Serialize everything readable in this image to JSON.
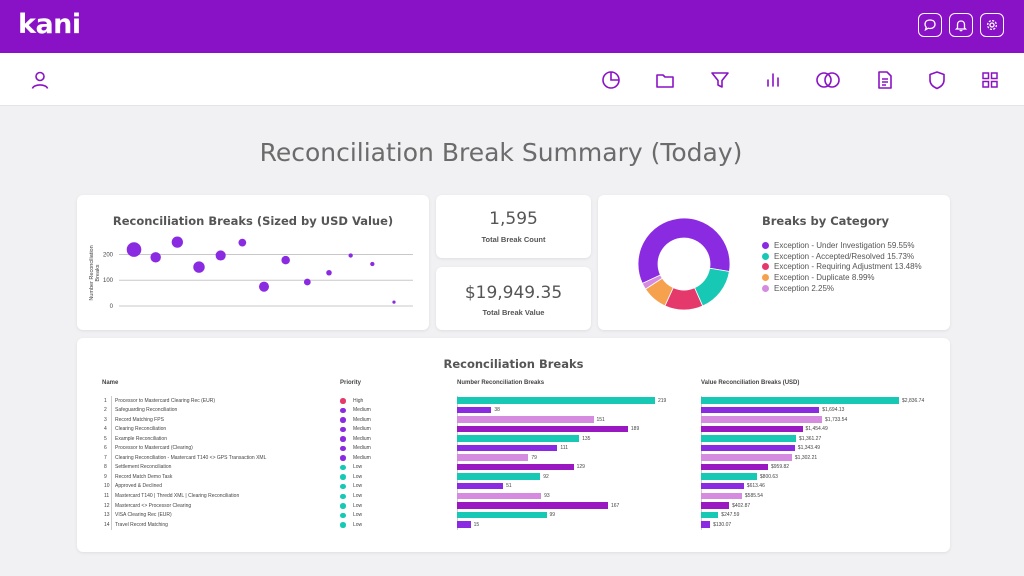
{
  "header": {
    "logo": "kani",
    "icons": [
      "chat-icon",
      "bell-icon",
      "gear-icon"
    ]
  },
  "nav": {
    "icons": [
      "user-icon",
      "pie-chart-icon",
      "folder-icon",
      "filter-icon",
      "bar-chart-icon",
      "rings-icon",
      "document-icon",
      "shield-icon",
      "grid-icon"
    ]
  },
  "page_title": "Reconciliation Break Summary (Today)",
  "colors": {
    "brand": "#8a12c6",
    "purple": "#8a2be2",
    "teal": "#17c8b5",
    "pink": "#e6396b",
    "orange": "#f6a14e",
    "lilac": "#d58be0"
  },
  "bubble_chart": {
    "title": "Reconciliation Breaks (Sized by USD Value)",
    "ylabel": "Number Reconciliation Breaks",
    "chart_data": {
      "type": "scatter",
      "title": "Reconciliation Breaks (Sized by USD Value)",
      "ylabel": "Number Reconciliation Breaks",
      "yticks": [
        0,
        100,
        200
      ],
      "ylim": [
        0,
        260
      ],
      "points": [
        {
          "x": 1,
          "y": 219,
          "size": 2836.74
        },
        {
          "x": 2,
          "y": 189,
          "size": 1454.49
        },
        {
          "x": 3,
          "y": 248,
          "size": 1694.13
        },
        {
          "x": 4,
          "y": 151,
          "size": 1733.54
        },
        {
          "x": 5,
          "y": 196,
          "size": 1361.27
        },
        {
          "x": 6,
          "y": 246,
          "size": 800.63
        },
        {
          "x": 7,
          "y": 75,
          "size": 1343.49
        },
        {
          "x": 8,
          "y": 178,
          "size": 959.82
        },
        {
          "x": 9,
          "y": 93,
          "size": 613.46
        },
        {
          "x": 10,
          "y": 129,
          "size": 402.87
        },
        {
          "x": 11,
          "y": 196,
          "size": 247.59
        },
        {
          "x": 12,
          "y": 163,
          "size": 247.59
        },
        {
          "x": 13,
          "y": 15,
          "size": 130.07
        }
      ]
    }
  },
  "kpis": [
    {
      "value": "1,595",
      "label": "Total Break Count"
    },
    {
      "value": "$19,949.35",
      "label": "Total Break Value"
    }
  ],
  "donut": {
    "title": "Breaks by Category",
    "chart_data": {
      "type": "pie",
      "title": "Breaks by Category",
      "labels": [
        "Exception - Under Investigation",
        "Exception - Accepted/Resolved",
        "Exception - Requiring Adjustment",
        "Exception - Duplicate",
        "Exception"
      ],
      "values": [
        59.55,
        15.73,
        13.48,
        8.99,
        2.25
      ],
      "colors": [
        "#8a2be2",
        "#17c8b5",
        "#e6396b",
        "#f6a14e",
        "#d58be0"
      ]
    },
    "legend": [
      "Exception - Under Investigation 59.55%",
      "Exception - Accepted/Resolved 15.73%",
      "Exception - Requiring Adjustment 13.48%",
      "Exception - Duplicate 8.99%",
      "Exception 2.25%"
    ]
  },
  "table": {
    "title": "Reconciliation Breaks",
    "headers": {
      "name": "Name",
      "priority": "Priority",
      "count": "Number Reconciliation Breaks",
      "value": "Value Reconciliation Breaks (USD)"
    },
    "rows": [
      {
        "num": "1",
        "name": "Processor to Mastercard Clearing Rec (EUR)",
        "priority": "High",
        "pcolor": "#e6396b",
        "count": 219,
        "count_label": "219",
        "value": 2836.74,
        "value_label": "$2,836.74",
        "color": "#17c8b5"
      },
      {
        "num": "2",
        "name": "Safeguarding Reconciliation",
        "priority": "Medium",
        "pcolor": "#8a2be2",
        "count": 38,
        "count_label": "38",
        "value": 1694.13,
        "value_label": "$1,694.13",
        "color": "#8a2be2"
      },
      {
        "num": "3",
        "name": "Record Matching FPS",
        "priority": "Medium",
        "pcolor": "#8a2be2",
        "count": 151,
        "count_label": "151",
        "value": 1733.54,
        "value_label": "$1,733.54",
        "color": "#d58be0"
      },
      {
        "num": "4",
        "name": "Clearing Reconciliation",
        "priority": "Medium",
        "pcolor": "#8a2be2",
        "count": 189,
        "count_label": "189",
        "value": 1454.49,
        "value_label": "$1,454.49",
        "color": "#9a18c2"
      },
      {
        "num": "5",
        "name": "Example Reconciliation",
        "priority": "Medium",
        "pcolor": "#8a2be2",
        "count": 135,
        "count_label": "135",
        "value": 1361.27,
        "value_label": "$1,361.27",
        "color": "#17c8b5"
      },
      {
        "num": "6",
        "name": "Processor to Mastercard (Clearing)",
        "priority": "Medium",
        "pcolor": "#8a2be2",
        "count": 111,
        "count_label": "111",
        "value": 1343.49,
        "value_label": "$1,343.49",
        "color": "#8a2be2"
      },
      {
        "num": "7",
        "name": "Clearing Reconciliation - Mastercard T140 <> GPS Transaction XML",
        "priority": "Medium",
        "pcolor": "#8a2be2",
        "count": 79,
        "count_label": "79",
        "value": 1302.21,
        "value_label": "$1,302.21",
        "color": "#d58be0"
      },
      {
        "num": "8",
        "name": "Settlement Reconciliation",
        "priority": "Low",
        "pcolor": "#17c8b5",
        "count": 129,
        "count_label": "129",
        "value": 959.82,
        "value_label": "$959.82",
        "color": "#9a18c2"
      },
      {
        "num": "9",
        "name": "Record Match Demo Task",
        "priority": "Low",
        "pcolor": "#17c8b5",
        "count": 92,
        "count_label": "92",
        "value": 800.63,
        "value_label": "$800.63",
        "color": "#17c8b5"
      },
      {
        "num": "10",
        "name": "Approved & Declined",
        "priority": "Low",
        "pcolor": "#17c8b5",
        "count": 51,
        "count_label": "51",
        "value": 613.46,
        "value_label": "$613.46",
        "color": "#8a2be2"
      },
      {
        "num": "11",
        "name": "Mastercard T140 | Thredd XML | Clearing Reconciliation",
        "priority": "Low",
        "pcolor": "#17c8b5",
        "count": 93,
        "count_label": "93",
        "value": 585.54,
        "value_label": "$585.54",
        "color": "#d58be0"
      },
      {
        "num": "12",
        "name": "Mastercard <> Processor Clearing",
        "priority": "Low",
        "pcolor": "#17c8b5",
        "count": 167,
        "count_label": "167",
        "value": 402.87,
        "value_label": "$402.87",
        "color": "#9a18c2"
      },
      {
        "num": "13",
        "name": "VISA Clearing Rec (EUR)",
        "priority": "Low",
        "pcolor": "#17c8b5",
        "count": 99,
        "count_label": "99",
        "value": 247.59,
        "value_label": "$247.59",
        "color": "#17c8b5"
      },
      {
        "num": "14",
        "name": "Travel Record Matching",
        "priority": "Low",
        "pcolor": "#17c8b5",
        "count": 15,
        "count_label": "15",
        "value": 130.07,
        "value_label": "$130.07",
        "color": "#8a2be2"
      }
    ]
  }
}
